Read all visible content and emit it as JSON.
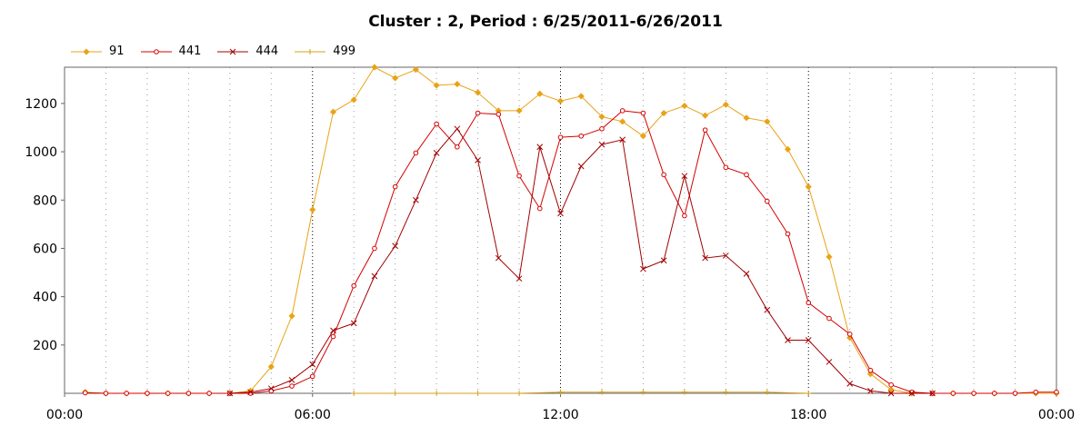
{
  "chart_data": {
    "type": "line",
    "title": "Cluster : 2, Period : 6/25/2011-6/26/2011",
    "xlabel": "",
    "ylabel": "",
    "x_tick_labels": [
      "00:00",
      "06:00",
      "12:00",
      "18:00",
      "00:00"
    ],
    "x_tick_hours": [
      0,
      6,
      12,
      18,
      24
    ],
    "xlim": [
      0,
      24
    ],
    "ylim": [
      0,
      1350
    ],
    "y_ticks": [
      200,
      400,
      600,
      800,
      1000,
      1200
    ],
    "grid": "vertical dotted lines",
    "legend_position": "top-left",
    "series": [
      {
        "name": "91",
        "color": "#E8A317",
        "marker": "diamond",
        "hours": [
          0.5,
          1,
          1.5,
          2,
          2.5,
          3,
          3.5,
          4,
          4.5,
          5,
          5.5,
          6,
          6.5,
          7,
          7.5,
          8,
          8.5,
          9,
          9.5,
          10,
          10.5,
          11,
          11.5,
          12,
          12.5,
          13,
          13.5,
          14,
          14.5,
          15,
          15.5,
          16,
          16.5,
          17,
          17.5,
          18,
          18.5,
          19,
          19.5,
          20,
          20.5,
          21,
          21.5,
          22,
          22.5,
          23,
          23.5,
          24
        ],
        "values": [
          5,
          0,
          0,
          0,
          0,
          0,
          0,
          0,
          10,
          110,
          320,
          760,
          1165,
          1215,
          1350,
          1305,
          1340,
          1275,
          1280,
          1245,
          1170,
          1170,
          1240,
          1210,
          1230,
          1145,
          1125,
          1065,
          1160,
          1190,
          1150,
          1195,
          1140,
          1125,
          1010,
          855,
          565,
          230,
          80,
          15,
          0,
          0,
          0,
          0,
          0,
          0,
          0,
          0
        ]
      },
      {
        "name": "441",
        "color": "#D40000",
        "marker": "circle",
        "hours": [
          0.5,
          1,
          1.5,
          2,
          2.5,
          3,
          3.5,
          4,
          4.5,
          5,
          5.5,
          6,
          6.5,
          7,
          7.5,
          8,
          8.5,
          9,
          9.5,
          10,
          10.5,
          11,
          11.5,
          12,
          12.5,
          13,
          13.5,
          14,
          14.5,
          15,
          15.5,
          16,
          16.5,
          17,
          17.5,
          18,
          18.5,
          19,
          19.5,
          20,
          20.5,
          21,
          21.5,
          22,
          22.5,
          23,
          23.5,
          24
        ],
        "values": [
          2,
          0,
          0,
          0,
          0,
          0,
          0,
          0,
          0,
          10,
          30,
          70,
          235,
          445,
          600,
          855,
          995,
          1115,
          1020,
          1160,
          1155,
          900,
          765,
          1060,
          1065,
          1095,
          1170,
          1160,
          905,
          735,
          1090,
          935,
          905,
          795,
          660,
          375,
          310,
          245,
          95,
          35,
          5,
          0,
          0,
          0,
          0,
          0,
          5,
          5
        ]
      },
      {
        "name": "444",
        "color": "#A00000",
        "marker": "x",
        "hours": [
          4,
          4.5,
          5,
          5.5,
          6,
          6.5,
          7,
          7.5,
          8,
          8.5,
          9,
          9.5,
          10,
          10.5,
          11,
          11.5,
          12,
          12.5,
          13,
          13.5,
          14,
          14.5,
          15,
          15.5,
          16,
          16.5,
          17,
          17.5,
          18,
          18.5,
          19,
          19.5,
          20,
          20.5,
          21
        ],
        "values": [
          0,
          5,
          20,
          55,
          120,
          260,
          290,
          485,
          610,
          800,
          995,
          1095,
          965,
          560,
          475,
          1020,
          745,
          940,
          1030,
          1050,
          515,
          550,
          900,
          560,
          570,
          495,
          345,
          220,
          220,
          130,
          40,
          10,
          0,
          0,
          0
        ]
      },
      {
        "name": "499",
        "color": "#D4A017",
        "marker": "plus",
        "hours": [
          7,
          8,
          9,
          10,
          11,
          12,
          13,
          14,
          15,
          16,
          17,
          18
        ],
        "values": [
          0,
          0,
          0,
          0,
          0,
          5,
          5,
          5,
          5,
          5,
          5,
          0
        ]
      }
    ]
  }
}
